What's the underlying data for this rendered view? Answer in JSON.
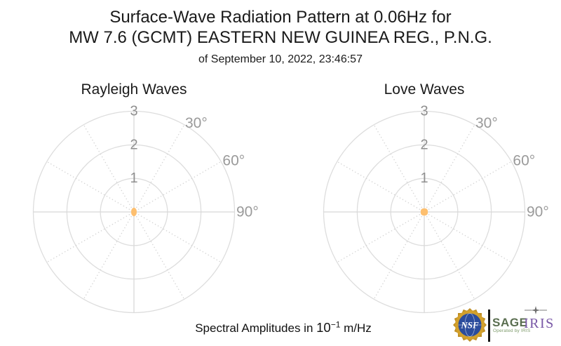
{
  "header": {
    "title_line1": "Surface-Wave Radiation Pattern at 0.06Hz for",
    "title_line2": "MW 7.6 (GCMT) EASTERN NEW GUINEA REG., P.N.G.",
    "subtitle": "of September 10, 2022, 23:46:57"
  },
  "footer": {
    "prefix": "Spectral Amplitudes in ",
    "base": "10",
    "exponent": "−1",
    "suffix": " m/Hz"
  },
  "branding": {
    "nsf_label": "NSF",
    "sage_label": "SAGE",
    "sage_sublabel": "Operated by IRIS",
    "iris_label": "IRIS",
    "colors": {
      "nsf_gold": "#D2A02C",
      "nsf_gold_dark": "#C08F24",
      "nsf_blue": "#2B4C9C",
      "sage_green": "#5A6E50",
      "sage_sub_green": "#7D9A6A",
      "iris_purple": "#7857A6",
      "divider_black": "#141414",
      "sparkle_gray": "#6E6E6E"
    }
  },
  "colors": {
    "background": "#FFFFFF",
    "grid_circle": "#DDDDDD",
    "grid_spoke_solid": "#D8D8D8",
    "grid_spoke_dotted": "#D4D4D4",
    "r_tick_label": "#8F8F8F",
    "theta_tick_label": "#9A9A9A",
    "pattern_fill": "#FDBF6F",
    "title_text": "#1A1A1A"
  },
  "chart_data": [
    {
      "type": "polar",
      "title": "Rayleigh Waves",
      "r_ticks": [
        1,
        2,
        3
      ],
      "r_max": 3,
      "theta_ticks": [
        {
          "angle_deg": 30,
          "label": "30°"
        },
        {
          "angle_deg": 60,
          "label": "60°"
        },
        {
          "angle_deg": 90,
          "label": "90°"
        }
      ],
      "grid_spokes_deg": [
        0,
        30,
        60,
        90,
        120,
        150,
        180,
        210,
        240,
        270,
        300,
        330
      ],
      "amplitude_units": "10^-1 m/Hz",
      "legend": "none",
      "series": [
        {
          "name": "radiation pattern",
          "azimuth_deg": [
            0,
            30,
            60,
            90,
            120,
            150,
            180,
            210,
            240,
            270,
            300,
            330
          ],
          "amplitude": [
            0.13,
            0.11,
            0.09,
            0.08,
            0.09,
            0.11,
            0.13,
            0.11,
            0.09,
            0.08,
            0.09,
            0.11
          ]
        }
      ]
    },
    {
      "type": "polar",
      "title": "Love Waves",
      "r_ticks": [
        1,
        2,
        3
      ],
      "r_max": 3,
      "theta_ticks": [
        {
          "angle_deg": 30,
          "label": "30°"
        },
        {
          "angle_deg": 60,
          "label": "60°"
        },
        {
          "angle_deg": 90,
          "label": "90°"
        }
      ],
      "grid_spokes_deg": [
        0,
        30,
        60,
        90,
        120,
        150,
        180,
        210,
        240,
        270,
        300,
        330
      ],
      "amplitude_units": "10^-1 m/Hz",
      "legend": "none",
      "series": [
        {
          "name": "radiation pattern",
          "azimuth_deg": [
            0,
            45,
            90,
            135,
            180,
            225,
            270,
            315
          ],
          "amplitude": [
            0.105,
            0.118,
            0.105,
            0.118,
            0.105,
            0.118,
            0.105,
            0.118
          ]
        }
      ]
    }
  ]
}
